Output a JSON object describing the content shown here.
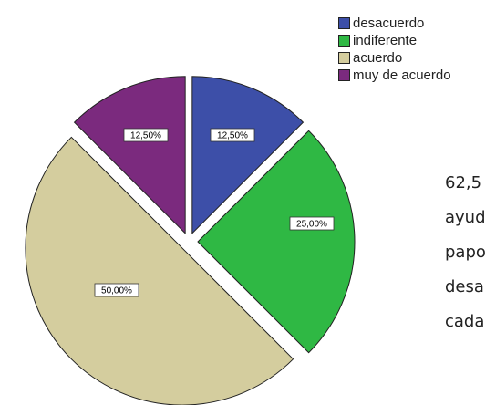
{
  "chart_data": {
    "type": "pie",
    "categories": [
      "desacuerdo",
      "indiferente",
      "acuerdo",
      "muy de acuerdo"
    ],
    "values": [
      12.5,
      25.0,
      50.0,
      12.5
    ],
    "labels": [
      "12,50%",
      "25,00%",
      "50,00%",
      "12,50%"
    ],
    "colors": [
      "#3d4fa8",
      "#2fb844",
      "#d4cd9e",
      "#7b2a7e"
    ],
    "exploded": true,
    "legend": "top-right"
  },
  "side_text": [
    "62,5",
    "ayud",
    "papo",
    "desa",
    "cada"
  ]
}
